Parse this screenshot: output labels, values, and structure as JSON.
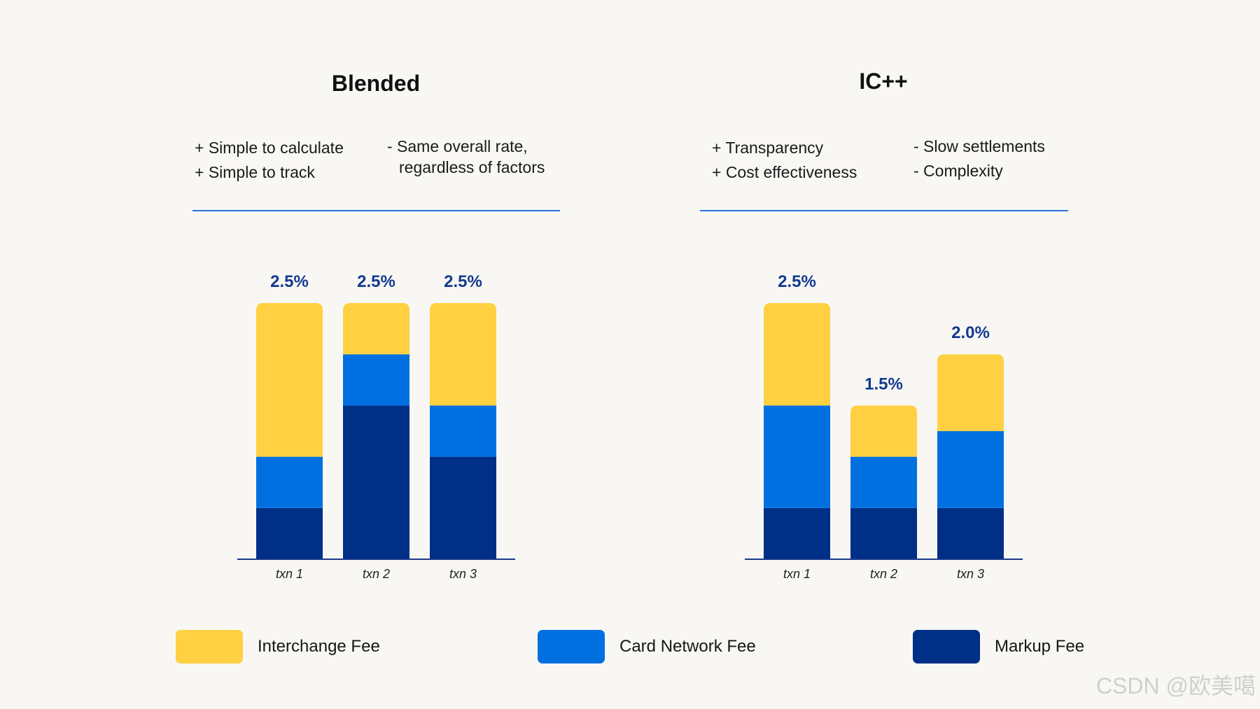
{
  "colors": {
    "interchange": "#fed042",
    "card_network": "#0070e0",
    "markup": "#002f87",
    "header_rule": "#2a6fd6",
    "axis": "#1a3a8a",
    "value_label": "#123a8f"
  },
  "panels": [
    {
      "title": "Blended",
      "pros": [
        "+ Simple to calculate",
        "+ Simple to track"
      ],
      "cons": [
        "- Same overall rate,",
        "regardless of factors"
      ]
    },
    {
      "title": "IC++",
      "pros": [
        "+ Transparency",
        "+ Cost effectiveness"
      ],
      "cons": [
        "- Slow settlements",
        "- Complexity"
      ]
    }
  ],
  "chart_data": [
    {
      "type": "bar",
      "stacked": true,
      "title": "Blended",
      "categories": [
        "txn 1",
        "txn 2",
        "txn 3"
      ],
      "totals_labels": [
        "2.5%",
        "2.5%",
        "2.5%"
      ],
      "series": [
        {
          "name": "Markup Fee",
          "values": [
            0.5,
            1.5,
            1.0
          ]
        },
        {
          "name": "Card Network Fee",
          "values": [
            0.5,
            0.5,
            0.5
          ]
        },
        {
          "name": "Interchange Fee",
          "values": [
            1.5,
            0.5,
            1.0
          ]
        }
      ],
      "ylim": [
        0,
        2.5
      ]
    },
    {
      "type": "bar",
      "stacked": true,
      "title": "IC++",
      "categories": [
        "txn 1",
        "txn 2",
        "txn 3"
      ],
      "totals_labels": [
        "2.5%",
        "1.5%",
        "2.0%"
      ],
      "series": [
        {
          "name": "Markup Fee",
          "values": [
            0.5,
            0.5,
            0.5
          ]
        },
        {
          "name": "Card Network Fee",
          "values": [
            1.0,
            0.5,
            0.75
          ]
        },
        {
          "name": "Interchange Fee",
          "values": [
            1.0,
            0.5,
            0.75
          ]
        }
      ],
      "ylim": [
        0,
        2.5
      ]
    }
  ],
  "legend": [
    {
      "label": "Interchange Fee",
      "color": "#fed042"
    },
    {
      "label": "Card Network Fee",
      "color": "#0070e0"
    },
    {
      "label": "Markup Fee",
      "color": "#002f87"
    }
  ],
  "watermark": "CSDN @欧美噶"
}
